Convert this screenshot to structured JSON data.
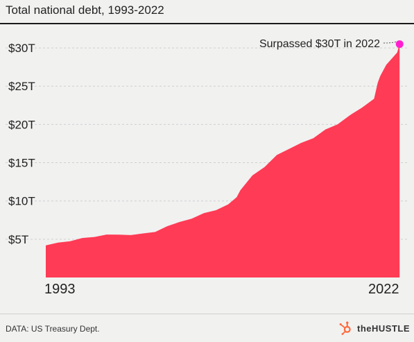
{
  "source": "DATA: US Treasury Dept.",
  "logo": {
    "text": "theHUSTLE"
  },
  "chart_data": {
    "type": "area",
    "title": "Total national debt, 1993-2022",
    "xlabel": "",
    "ylabel": "",
    "x_tick_labels": [
      "1993",
      "2022"
    ],
    "y_ticks": [
      {
        "value": 5,
        "label": "$5T"
      },
      {
        "value": 10,
        "label": "$10T"
      },
      {
        "value": 15,
        "label": "$15T"
      },
      {
        "value": 20,
        "label": "$20T"
      },
      {
        "value": 25,
        "label": "$25T"
      },
      {
        "value": 30,
        "label": "$30T"
      }
    ],
    "xlim": [
      1993,
      2022.2
    ],
    "ylim": [
      0,
      33
    ],
    "grid": true,
    "color": "#ff3b55",
    "annotation": {
      "label": "Surpassed $30T in 2022",
      "x": 2022.1,
      "y": 30.5,
      "marker_color": "#ff1fcf"
    },
    "series": [
      {
        "x": [
          1993,
          1994,
          1995,
          1996,
          1997,
          1998,
          1999,
          2000,
          2001,
          2002,
          2003,
          2004,
          2005,
          2006,
          2007,
          2008,
          2008.7,
          2009,
          2010,
          2011,
          2012,
          2013,
          2014,
          2015,
          2016,
          2017,
          2018,
          2019,
          2020,
          2020.3,
          2020.5,
          2021,
          2021.9,
          2022.1
        ],
        "values": [
          4.2,
          4.55,
          4.85,
          5.1,
          5.35,
          5.5,
          5.6,
          5.65,
          5.7,
          6.0,
          6.6,
          7.25,
          7.8,
          8.35,
          8.85,
          9.45,
          10.5,
          11.5,
          13.3,
          14.5,
          15.9,
          16.8,
          17.7,
          18.15,
          19.4,
          19.9,
          21.2,
          22.3,
          23.3,
          25.5,
          26.2,
          27.8,
          29.5,
          30.5
        ]
      }
    ]
  }
}
